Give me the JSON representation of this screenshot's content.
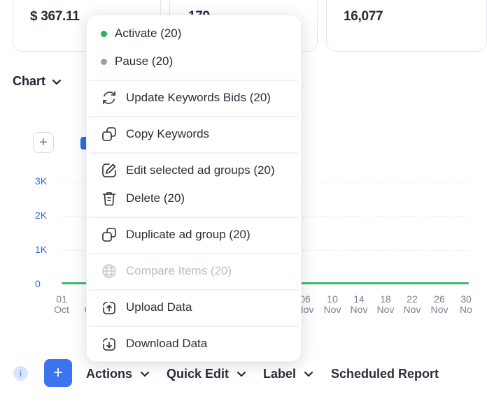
{
  "cards": [
    {
      "value": "$ 367.11"
    },
    {
      "value": "179"
    },
    {
      "value": "16,077"
    }
  ],
  "chart": {
    "toggle_label": "Chart",
    "add_label": "+"
  },
  "chart_data": {
    "type": "line",
    "y_ticks": [
      "3K",
      "2K",
      "1K",
      "0"
    ],
    "ylim": [
      0,
      3000
    ],
    "x_ticks": [
      {
        "day": "01",
        "month": "Oct"
      },
      {
        "day": "0",
        "month": "O"
      },
      {
        "day": "06",
        "month": "Nov"
      },
      {
        "day": "10",
        "month": "Nov"
      },
      {
        "day": "14",
        "month": "Nov"
      },
      {
        "day": "18",
        "month": "Nov"
      },
      {
        "day": "22",
        "month": "Nov"
      },
      {
        "day": "26",
        "month": "Nov"
      },
      {
        "day": "30",
        "month": "No"
      }
    ],
    "series": [
      {
        "color": "#3dbb6f",
        "values": [
          0,
          0,
          0,
          0,
          0,
          0,
          0,
          0,
          0
        ]
      }
    ]
  },
  "toolbar": {
    "info": "i",
    "add": "+",
    "actions": "Actions",
    "quick_edit": "Quick Edit",
    "label": "Label",
    "scheduled_report": "Scheduled Report"
  },
  "menu": {
    "status": [
      {
        "label": "Activate (20)",
        "color": "#22b463"
      },
      {
        "label": "Pause (20)",
        "color": "#9aa0ab"
      }
    ],
    "items": [
      {
        "label": "Update Keywords Bids (20)",
        "icon": "refresh-icon"
      },
      {
        "label": "Copy Keywords",
        "icon": "copy-icon"
      },
      {
        "label": "Edit selected ad groups (20)",
        "icon": "edit-icon"
      },
      {
        "label": "Delete (20)",
        "icon": "trash-icon"
      },
      {
        "label": "Duplicate ad group (20)",
        "icon": "duplicate-icon"
      },
      {
        "label": "Compare Items (20)",
        "icon": "globe-icon",
        "disabled": true
      },
      {
        "label": "Upload Data",
        "icon": "upload-icon"
      },
      {
        "label": "Download Data",
        "icon": "download-icon"
      }
    ]
  }
}
